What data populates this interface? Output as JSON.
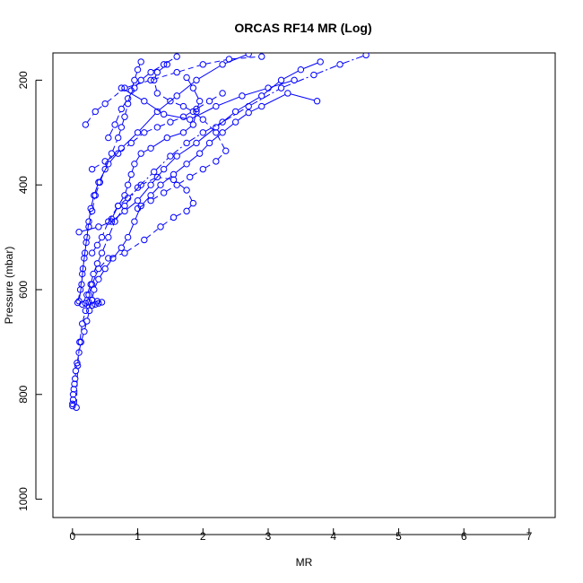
{
  "chart_data": {
    "type": "scatter",
    "title": "ORCAS RF14 MR (Log)",
    "xlabel": "MR",
    "ylabel": "Pressure (mbar)",
    "xlim": [
      -0.3,
      7.4
    ],
    "ylim": [
      1035,
      148
    ],
    "y_reversed": true,
    "x_ticks": [
      0,
      1,
      2,
      3,
      4,
      5,
      6,
      7
    ],
    "y_ticks": [
      200,
      400,
      600,
      800,
      1000
    ],
    "grid": false,
    "legend": "none",
    "color": "#0000ff",
    "marker": "open-circle",
    "series": [
      {
        "style": "solid",
        "points": [
          [
            0.0,
            822
          ],
          [
            0.0,
            818
          ],
          [
            0.01,
            810
          ],
          [
            0.01,
            800
          ],
          [
            0.02,
            790
          ],
          [
            0.03,
            780
          ],
          [
            0.04,
            770
          ],
          [
            0.05,
            755
          ],
          [
            0.07,
            740
          ],
          [
            0.1,
            720
          ],
          [
            0.13,
            700
          ],
          [
            0.18,
            680
          ],
          [
            0.22,
            660
          ],
          [
            0.26,
            640
          ],
          [
            0.3,
            620
          ],
          [
            0.33,
            600
          ],
          [
            0.4,
            580
          ],
          [
            0.5,
            560
          ],
          [
            0.62,
            540
          ],
          [
            0.75,
            520
          ],
          [
            0.85,
            500
          ],
          [
            0.95,
            470
          ],
          [
            1.05,
            440
          ],
          [
            1.2,
            420
          ],
          [
            1.35,
            400
          ],
          [
            1.55,
            380
          ],
          [
            1.75,
            360
          ],
          [
            1.95,
            340
          ],
          [
            2.1,
            320
          ],
          [
            2.3,
            300
          ],
          [
            2.5,
            280
          ],
          [
            2.7,
            262
          ],
          [
            2.9,
            250
          ],
          [
            3.3,
            225
          ],
          [
            3.75,
            240
          ]
        ]
      },
      {
        "style": "dashed",
        "points": [
          [
            0.06,
            825
          ],
          [
            0.08,
            745
          ],
          [
            0.11,
            700
          ],
          [
            0.15,
            665
          ],
          [
            0.2,
            640
          ],
          [
            0.25,
            610
          ],
          [
            0.3,
            590
          ],
          [
            0.4,
            560
          ],
          [
            0.55,
            540
          ],
          [
            0.8,
            530
          ],
          [
            1.1,
            505
          ],
          [
            1.35,
            480
          ],
          [
            1.55,
            462
          ],
          [
            1.75,
            450
          ],
          [
            1.85,
            435
          ],
          [
            1.75,
            410
          ],
          [
            1.55,
            390
          ],
          [
            1.3,
            385
          ],
          [
            1.05,
            400
          ],
          [
            0.85,
            425
          ],
          [
            0.7,
            440
          ],
          [
            0.55,
            470
          ],
          [
            0.45,
            500
          ],
          [
            0.38,
            515
          ],
          [
            0.3,
            530
          ]
        ]
      },
      {
        "style": "dashed",
        "points": [
          [
            0.08,
            625
          ],
          [
            0.12,
            600
          ],
          [
            0.15,
            570
          ],
          [
            0.18,
            540
          ],
          [
            0.21,
            510
          ],
          [
            0.25,
            480
          ],
          [
            0.3,
            450
          ],
          [
            0.35,
            420
          ],
          [
            0.42,
            395
          ],
          [
            0.5,
            370
          ],
          [
            0.6,
            340
          ],
          [
            0.7,
            310
          ],
          [
            0.75,
            290
          ],
          [
            0.8,
            270
          ],
          [
            0.85,
            245
          ],
          [
            0.9,
            220
          ],
          [
            0.95,
            200
          ],
          [
            1.0,
            180
          ],
          [
            1.05,
            165
          ]
        ]
      },
      {
        "style": "solid",
        "points": [
          [
            0.1,
            622
          ],
          [
            0.14,
            590
          ],
          [
            0.16,
            560
          ],
          [
            0.19,
            530
          ],
          [
            0.22,
            500
          ],
          [
            0.25,
            470
          ],
          [
            0.28,
            445
          ],
          [
            0.33,
            420
          ],
          [
            0.4,
            395
          ],
          [
            0.55,
            360
          ],
          [
            0.75,
            330
          ],
          [
            1.0,
            300
          ],
          [
            1.3,
            260
          ],
          [
            1.6,
            230
          ],
          [
            1.9,
            200
          ],
          [
            2.3,
            170
          ],
          [
            2.7,
            150
          ]
        ]
      },
      {
        "style": "dashdot",
        "points": [
          [
            0.15,
            628
          ],
          [
            0.22,
            610
          ],
          [
            0.28,
            590
          ],
          [
            0.32,
            570
          ],
          [
            0.38,
            550
          ],
          [
            0.45,
            530
          ],
          [
            0.55,
            500
          ],
          [
            0.65,
            470
          ],
          [
            0.8,
            440
          ],
          [
            1.0,
            405
          ],
          [
            1.25,
            375
          ],
          [
            1.5,
            345
          ],
          [
            1.75,
            320
          ],
          [
            2.0,
            300
          ],
          [
            2.3,
            280
          ],
          [
            2.7,
            250
          ],
          [
            3.2,
            215
          ],
          [
            3.7,
            190
          ],
          [
            4.1,
            170
          ],
          [
            4.5,
            152
          ]
        ]
      },
      {
        "style": "solid",
        "points": [
          [
            0.1,
            490
          ],
          [
            0.4,
            480
          ],
          [
            0.6,
            470
          ],
          [
            0.8,
            450
          ],
          [
            1.0,
            430
          ],
          [
            1.2,
            400
          ],
          [
            1.4,
            370
          ],
          [
            1.6,
            345
          ],
          [
            1.9,
            320
          ],
          [
            2.2,
            290
          ],
          [
            2.5,
            260
          ],
          [
            2.9,
            230
          ],
          [
            3.2,
            200
          ],
          [
            3.5,
            180
          ],
          [
            3.8,
            165
          ]
        ]
      },
      {
        "style": "dashed",
        "points": [
          [
            0.2,
            285
          ],
          [
            0.35,
            260
          ],
          [
            0.5,
            245
          ],
          [
            0.8,
            215
          ],
          [
            1.2,
            200
          ],
          [
            1.6,
            185
          ],
          [
            2.0,
            170
          ],
          [
            2.4,
            160
          ],
          [
            2.9,
            155
          ]
        ]
      },
      {
        "style": "solid",
        "points": [
          [
            0.75,
            215
          ],
          [
            1.1,
            240
          ],
          [
            1.4,
            265
          ],
          [
            1.8,
            275
          ],
          [
            2.2,
            250
          ],
          [
            2.6,
            230
          ],
          [
            3.0,
            215
          ],
          [
            3.4,
            200
          ]
        ]
      },
      {
        "style": "dashdot",
        "points": [
          [
            0.55,
            310
          ],
          [
            0.65,
            285
          ],
          [
            0.75,
            255
          ],
          [
            0.85,
            235
          ],
          [
            0.95,
            215
          ],
          [
            1.05,
            200
          ],
          [
            1.2,
            185
          ],
          [
            1.4,
            170
          ],
          [
            1.6,
            155
          ]
        ]
      },
      {
        "style": "dashed",
        "points": [
          [
            0.3,
            370
          ],
          [
            0.5,
            355
          ],
          [
            0.7,
            340
          ],
          [
            0.9,
            320
          ],
          [
            1.1,
            300
          ],
          [
            1.3,
            290
          ],
          [
            1.5,
            280
          ],
          [
            1.7,
            270
          ],
          [
            1.9,
            255
          ],
          [
            2.1,
            240
          ],
          [
            2.3,
            225
          ]
        ]
      },
      {
        "style": "solid",
        "points": [
          [
            0.6,
            465
          ],
          [
            0.7,
            440
          ],
          [
            0.8,
            420
          ],
          [
            0.85,
            400
          ],
          [
            0.9,
            380
          ],
          [
            0.95,
            360
          ],
          [
            1.05,
            340
          ],
          [
            1.2,
            330
          ],
          [
            1.45,
            310
          ],
          [
            1.7,
            300
          ],
          [
            1.85,
            285
          ],
          [
            1.9,
            260
          ],
          [
            1.95,
            240
          ],
          [
            1.85,
            215
          ],
          [
            1.75,
            195
          ]
        ]
      },
      {
        "style": "dashed",
        "points": [
          [
            1.0,
            445
          ],
          [
            1.2,
            430
          ],
          [
            1.4,
            415
          ],
          [
            1.6,
            400
          ],
          [
            1.8,
            385
          ],
          [
            2.0,
            370
          ],
          [
            2.2,
            355
          ],
          [
            2.35,
            335
          ],
          [
            2.2,
            300
          ],
          [
            2.0,
            275
          ],
          [
            1.85,
            260
          ],
          [
            1.7,
            250
          ],
          [
            1.5,
            240
          ],
          [
            1.3,
            225
          ],
          [
            1.25,
            200
          ],
          [
            1.3,
            185
          ],
          [
            1.45,
            170
          ]
        ]
      },
      {
        "style": "dashdot",
        "points": [
          [
            0.3,
            630
          ],
          [
            0.35,
            628
          ],
          [
            0.4,
            626
          ],
          [
            0.45,
            624
          ],
          [
            0.38,
            622
          ],
          [
            0.3,
            620
          ],
          [
            0.25,
            624
          ],
          [
            0.2,
            626
          ]
        ]
      }
    ]
  }
}
